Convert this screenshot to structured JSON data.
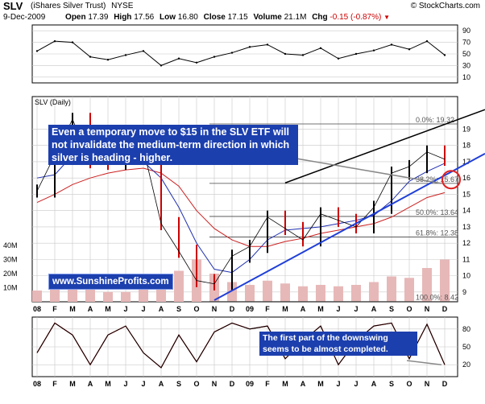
{
  "header": {
    "ticker": "SLV",
    "name": "(iShares Silver Trust)",
    "exchange": "NYSE",
    "source": "© StockCharts.com",
    "date": "9-Dec-2009",
    "open_label": "Open",
    "open": "17.39",
    "high_label": "High",
    "high": "17.56",
    "low_label": "Low",
    "low": "16.80",
    "close_label": "Close",
    "close": "17.15",
    "volume_label": "Volume",
    "volume": "21.1M",
    "chg_label": "Chg",
    "chg": "-0.15 (-0.87%)",
    "chg_color": "#cc0000"
  },
  "main_panel_label": "SLV (Daily)",
  "annotations": {
    "main": "Even a temporary move to $15 in the SLV ETF will not invalidate the medium-term direction in which silver is heading - higher.",
    "lower": "The first part of the downswing seems to be almost completed.",
    "website": "www.SunshineProfits.com"
  },
  "fib_labels": [
    "0.0%: 19.32",
    "38.2%: 15.67",
    "50.0%: 13.64",
    "61.8%: 12.38",
    "100.0%: 8.42"
  ],
  "colors": {
    "price_up": "#000000",
    "price_down": "#cc0000",
    "ma_short": "#1f2fb0",
    "ma_long": "#cc2020",
    "trendline": "#1f3fd8",
    "volume": "#e7b8b8",
    "annotation_bg": "#1c3fae",
    "circle": "#e02020"
  },
  "chart_data": [
    {
      "type": "line",
      "name": "rsi-panel",
      "ylim": [
        0,
        100
      ],
      "y_ticks": [
        10,
        30,
        50,
        70,
        90
      ],
      "grid": true,
      "x": [
        "Jan-08",
        "Feb-08",
        "Mar-08",
        "Apr-08",
        "May-08",
        "Jun-08",
        "Jul-08",
        "Aug-08",
        "Sep-08",
        "Oct-08",
        "Nov-08",
        "Dec-08",
        "Jan-09",
        "Feb-09",
        "Mar-09",
        "Apr-09",
        "May-09",
        "Jun-09",
        "Jul-09",
        "Aug-09",
        "Sep-09",
        "Oct-09",
        "Nov-09",
        "Dec-09"
      ],
      "values": [
        55,
        72,
        70,
        45,
        40,
        48,
        55,
        30,
        42,
        35,
        45,
        52,
        62,
        66,
        50,
        48,
        60,
        42,
        50,
        56,
        66,
        58,
        72,
        48
      ]
    },
    {
      "type": "line",
      "name": "price-panel",
      "y_ticks": [
        9,
        10,
        11,
        12,
        13,
        14,
        15,
        16,
        17,
        18,
        19
      ],
      "ylim": [
        8.4,
        21.0
      ],
      "volume_ticks": [
        "10M",
        "20M",
        "30M",
        "40M"
      ],
      "x_ticks": [
        "08",
        "F",
        "M",
        "A",
        "M",
        "J",
        "J",
        "A",
        "S",
        "O",
        "N",
        "D",
        "09",
        "F",
        "M",
        "A",
        "M",
        "J",
        "J",
        "A",
        "S",
        "O",
        "N",
        "D"
      ],
      "x": [
        "Jan-08",
        "Feb-08",
        "Mar-08",
        "Apr-08",
        "May-08",
        "Jun-08",
        "Jul-08",
        "Aug-08",
        "Sep-08",
        "Oct-08",
        "Nov-08",
        "Dec-08",
        "Jan-09",
        "Feb-09",
        "Mar-09",
        "Apr-09",
        "May-09",
        "Jun-09",
        "Jul-09",
        "Aug-09",
        "Sep-09",
        "Oct-09",
        "Nov-09",
        "Dec-09"
      ],
      "close": [
        15.2,
        17.4,
        19.6,
        17.0,
        16.9,
        17.2,
        17.8,
        13.2,
        11.5,
        9.7,
        9.5,
        11.2,
        11.8,
        13.6,
        12.9,
        12.2,
        13.8,
        13.4,
        13.0,
        14.2,
        16.3,
        16.7,
        17.6,
        17.15
      ],
      "ma_short": [
        16.0,
        16.2,
        17.4,
        17.8,
        17.6,
        17.2,
        17.0,
        16.0,
        14.2,
        12.0,
        10.4,
        10.2,
        11.0,
        12.2,
        12.8,
        12.9,
        13.0,
        13.2,
        13.4,
        13.7,
        14.6,
        15.8,
        16.4,
        16.9
      ],
      "ma_long": [
        14.5,
        15.0,
        15.6,
        16.0,
        16.3,
        16.5,
        16.6,
        16.3,
        15.5,
        14.0,
        12.9,
        12.2,
        11.8,
        11.8,
        12.1,
        12.3,
        12.6,
        12.8,
        13.0,
        13.2,
        13.6,
        14.2,
        14.8,
        15.1
      ],
      "volume": [
        8,
        10,
        14,
        9,
        7,
        7,
        9,
        16,
        22,
        30,
        20,
        14,
        12,
        15,
        13,
        11,
        12,
        11,
        12,
        14,
        18,
        17,
        24,
        30
      ],
      "fib_levels": [
        19.32,
        15.67,
        13.64,
        12.38,
        8.42
      ]
    },
    {
      "type": "line",
      "name": "stochastic-panel",
      "ylim": [
        0,
        100
      ],
      "y_ticks": [
        20,
        50,
        80
      ],
      "x_ticks": [
        "08",
        "F",
        "M",
        "A",
        "M",
        "J",
        "J",
        "A",
        "S",
        "O",
        "N",
        "D",
        "09",
        "F",
        "M",
        "A",
        "M",
        "J",
        "J",
        "A",
        "S",
        "O",
        "N",
        "D"
      ],
      "x": [
        "Jan-08",
        "Feb-08",
        "Mar-08",
        "Apr-08",
        "May-08",
        "Jun-08",
        "Jul-08",
        "Aug-08",
        "Sep-08",
        "Oct-08",
        "Nov-08",
        "Dec-08",
        "Jan-09",
        "Feb-09",
        "Mar-09",
        "Apr-09",
        "May-09",
        "Jun-09",
        "Jul-09",
        "Aug-09",
        "Sep-09",
        "Oct-09",
        "Nov-09",
        "Dec-09"
      ],
      "values": [
        40,
        90,
        70,
        20,
        70,
        85,
        40,
        15,
        70,
        25,
        75,
        90,
        80,
        85,
        30,
        60,
        85,
        20,
        60,
        85,
        90,
        30,
        88,
        20
      ]
    }
  ]
}
